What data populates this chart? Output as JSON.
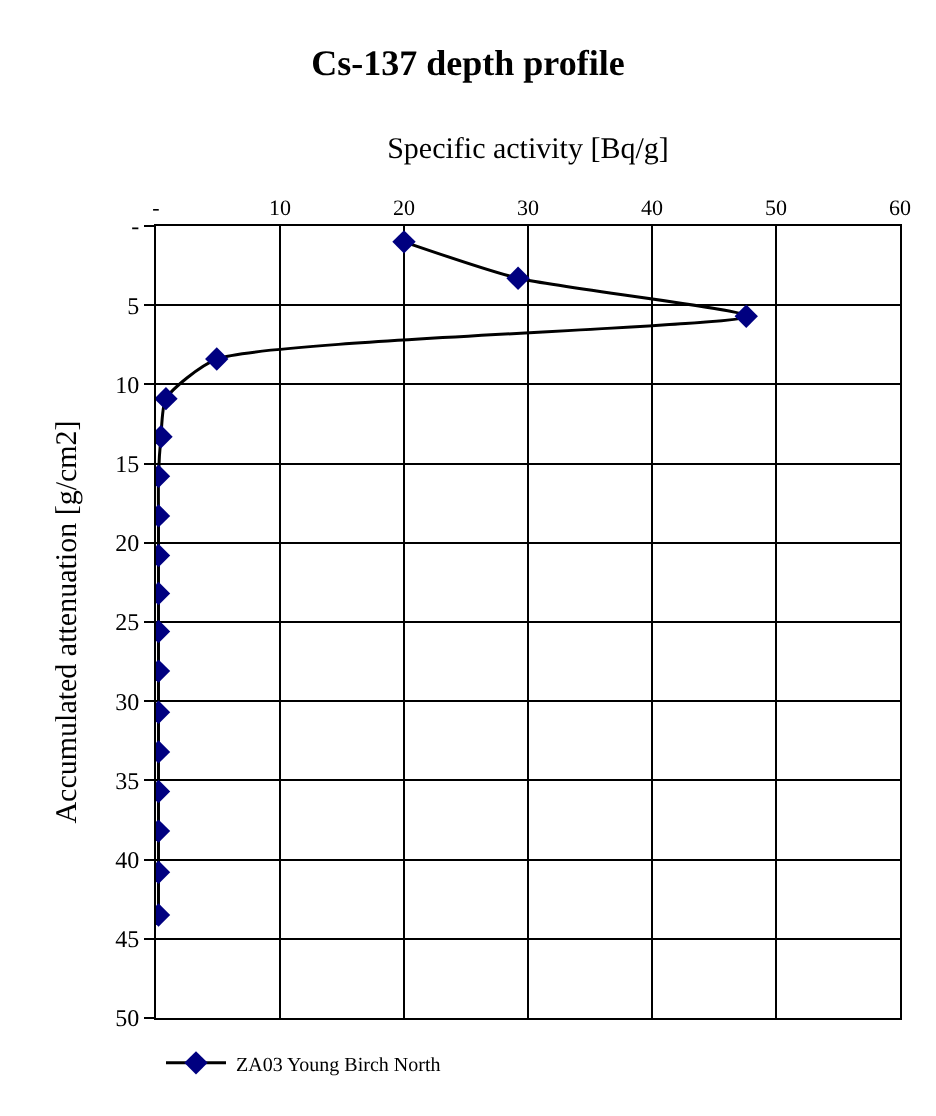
{
  "chart_data": {
    "type": "line",
    "title": "Cs-137 depth profile",
    "xlabel": "Specific activity [Bq/g]",
    "ylabel": "Accumulated attenuation [g/cm2]",
    "series": [
      {
        "name": "ZA03 Young Birch North",
        "color": "#000080",
        "x": [
          20,
          29.2,
          47.6,
          4.9,
          0.8,
          0.4,
          0.2,
          0.2,
          0.2,
          0.2,
          0.2,
          0.2,
          0.2,
          0.2,
          0.2,
          0.2,
          0.2,
          0.2
        ],
        "values": [
          1,
          3.3,
          5.7,
          8.4,
          10.9,
          13.3,
          15.8,
          18.3,
          20.8,
          23.2,
          25.6,
          28.1,
          30.7,
          33.2,
          35.7,
          38.2,
          40.8,
          43.5
        ]
      }
    ],
    "xlim": [
      0,
      60
    ],
    "xticks": [
      {
        "value": 0,
        "label": "-"
      },
      10,
      20,
      30,
      40,
      50,
      60
    ],
    "ylim": [
      50,
      0
    ],
    "yticks": [
      {
        "value": 0,
        "label": "-"
      },
      5,
      10,
      15,
      20,
      25,
      30,
      35,
      40,
      45,
      50
    ],
    "grid": true,
    "legend": "bottom",
    "marker": "diamond",
    "line_style": "solid"
  }
}
